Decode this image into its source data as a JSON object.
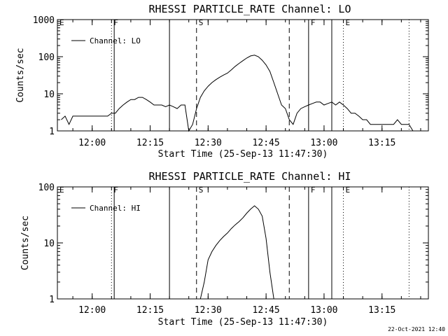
{
  "chart_data": [
    {
      "type": "line",
      "title": "RHESSI PARTICLE_RATE Channel: LO",
      "xlabel": "Start Time (25-Sep-13 11:47:30)",
      "ylabel": "Counts/sec",
      "yscale": "log",
      "ylim": [
        1,
        1000
      ],
      "xlim": [
        "11:51",
        "13:27"
      ],
      "xticks": [
        "12:00",
        "12:15",
        "12:30",
        "12:45",
        "13:00",
        "13:15"
      ],
      "yticks": [
        "1",
        "10",
        "100",
        "1000"
      ],
      "legend": "top-left",
      "series": [
        {
          "name": "Channel: LO",
          "x": [
            "11:52",
            "11:53",
            "11:54",
            "11:55",
            "11:56",
            "11:57",
            "11:58",
            "11:59",
            "12:00",
            "12:01",
            "12:02",
            "12:03",
            "12:04",
            "12:05",
            "12:06",
            "12:07",
            "12:08",
            "12:09",
            "12:10",
            "12:11",
            "12:12",
            "12:13",
            "12:14",
            "12:15",
            "12:16",
            "12:17",
            "12:18",
            "12:19",
            "12:20",
            "12:21",
            "12:22",
            "12:23",
            "12:24",
            "12:25",
            "12:26",
            "12:27",
            "12:28",
            "12:29",
            "12:30",
            "12:31",
            "12:32",
            "12:33",
            "12:34",
            "12:35",
            "12:36",
            "12:37",
            "12:38",
            "12:39",
            "12:40",
            "12:41",
            "12:42",
            "12:43",
            "12:44",
            "12:45",
            "12:46",
            "12:47",
            "12:48",
            "12:49",
            "12:50",
            "12:51",
            "12:52",
            "12:53",
            "12:54",
            "12:55",
            "12:56",
            "12:57",
            "12:58",
            "12:59",
            "13:00",
            "13:01",
            "13:02",
            "13:03",
            "13:04",
            "13:05",
            "13:06",
            "13:07",
            "13:08",
            "13:09",
            "13:10",
            "13:11",
            "13:12",
            "13:13",
            "13:14",
            "13:15",
            "13:16",
            "13:17",
            "13:18",
            "13:19",
            "13:20",
            "13:21",
            "13:22",
            "13:23"
          ],
          "values": [
            2,
            2.5,
            1.5,
            2.5,
            2.5,
            2.5,
            2.5,
            2.5,
            2.5,
            2.5,
            2.5,
            2.5,
            2.5,
            3,
            3,
            4,
            5,
            6,
            7,
            7,
            8,
            8,
            7,
            6,
            5,
            5,
            5,
            4.5,
            5,
            4.5,
            4,
            5,
            5,
            1,
            1.5,
            4,
            8,
            12,
            16,
            20,
            24,
            28,
            32,
            36,
            44,
            55,
            66,
            78,
            92,
            105,
            110,
            100,
            80,
            60,
            40,
            20,
            10,
            5,
            4,
            2,
            1.5,
            3,
            4,
            4.5,
            5,
            5.5,
            6,
            6,
            5,
            5.5,
            6,
            5,
            6,
            5,
            4,
            3,
            3,
            2.5,
            2,
            2,
            1.5,
            1.5,
            1.5,
            1.5,
            1.5,
            1.5,
            1.5,
            2,
            1.5,
            1.5,
            1.5,
            1
          ]
        }
      ],
      "markers": [
        {
          "label": "E",
          "time": "11:51",
          "style": "dotted"
        },
        {
          "label": "F",
          "time": "12:05",
          "style": "dotted"
        },
        {
          "label": "",
          "time": "12:05.7",
          "style": "solid"
        },
        {
          "label": "",
          "time": "12:20",
          "style": "solid"
        },
        {
          "label": "S",
          "time": "12:27",
          "style": "dashed"
        },
        {
          "label": "",
          "time": "12:51",
          "style": "dashed"
        },
        {
          "label": "F",
          "time": "12:56",
          "style": "solid"
        },
        {
          "label": "",
          "time": "13:02",
          "style": "solid"
        },
        {
          "label": "E",
          "time": "13:05",
          "style": "dotted"
        },
        {
          "label": "",
          "time": "13:22",
          "style": "dotted"
        }
      ]
    },
    {
      "type": "line",
      "title": "RHESSI PARTICLE_RATE Channel: HI",
      "xlabel": "Start Time (25-Sep-13 11:47:30)",
      "ylabel": "Counts/sec",
      "yscale": "log",
      "ylim": [
        1,
        100
      ],
      "xlim": [
        "11:51",
        "13:27"
      ],
      "xticks": [
        "12:00",
        "12:15",
        "12:30",
        "12:45",
        "13:00",
        "13:15"
      ],
      "yticks": [
        "1",
        "10",
        "100"
      ],
      "legend": "top-left",
      "series": [
        {
          "name": "Channel: HI",
          "x": [
            "12:28",
            "12:29",
            "12:30",
            "12:31",
            "12:32",
            "12:33",
            "12:34",
            "12:35",
            "12:36",
            "12:37",
            "12:38",
            "12:39",
            "12:40",
            "12:41",
            "12:42",
            "12:43",
            "12:44",
            "12:45",
            "12:46",
            "12:47"
          ],
          "values": [
            1,
            2,
            5,
            7,
            9,
            11,
            13,
            15,
            18,
            21,
            24,
            28,
            34,
            40,
            46,
            40,
            30,
            12,
            3,
            1
          ]
        }
      ],
      "markers": [
        {
          "label": "E",
          "time": "11:51",
          "style": "dotted"
        },
        {
          "label": "F",
          "time": "12:05",
          "style": "dotted"
        },
        {
          "label": "",
          "time": "12:05.7",
          "style": "solid"
        },
        {
          "label": "",
          "time": "12:20",
          "style": "solid"
        },
        {
          "label": "S",
          "time": "12:27",
          "style": "dashed"
        },
        {
          "label": "",
          "time": "12:51",
          "style": "dashed"
        },
        {
          "label": "F",
          "time": "12:56",
          "style": "solid"
        },
        {
          "label": "",
          "time": "13:02",
          "style": "solid"
        },
        {
          "label": "E",
          "time": "13:05",
          "style": "dotted"
        },
        {
          "label": "",
          "time": "13:22",
          "style": "dotted"
        }
      ]
    }
  ],
  "footer": {
    "timestamp": "22-Oct-2021 12:40"
  }
}
